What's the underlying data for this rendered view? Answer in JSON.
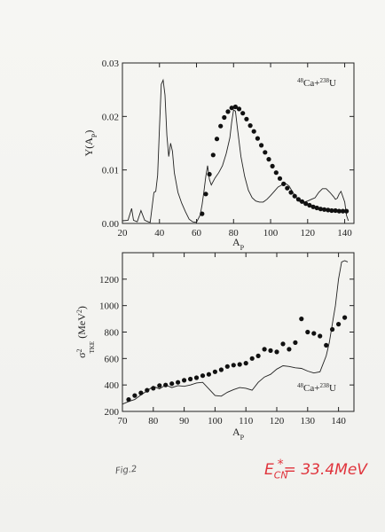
{
  "chart_data": [
    {
      "type": "line",
      "annotation": "48Ca+238U",
      "xlabel": "A_P",
      "ylabel": "Y(A_P)",
      "xlim": [
        20,
        145
      ],
      "ylim": [
        0,
        0.03
      ],
      "xticks": [
        20,
        40,
        60,
        80,
        100,
        120,
        140
      ],
      "yticks": [
        0.0,
        0.01,
        0.02,
        0.03
      ],
      "ytick_labels": [
        "0.00",
        "0.01",
        "0.02",
        "0.03"
      ],
      "series": [
        {
          "style": "line",
          "x": [
            20,
            23,
            25,
            26,
            28,
            30,
            32,
            34,
            35,
            37,
            38,
            39,
            40,
            41,
            42,
            43,
            44,
            45,
            46,
            47,
            48,
            50,
            52,
            54,
            56,
            58,
            60,
            62,
            63,
            64,
            65,
            66,
            67,
            68,
            70,
            72,
            74,
            76,
            78,
            79,
            80,
            81,
            82,
            84,
            86,
            88,
            90,
            92,
            94,
            96,
            98,
            100,
            102,
            104,
            106,
            108,
            110,
            112,
            114,
            116,
            118,
            120,
            122,
            124,
            126,
            128,
            130,
            132,
            134,
            135,
            136,
            137,
            138,
            140,
            141,
            142
          ],
          "y": [
            0.0005,
            0.0006,
            0.0028,
            0.0006,
            0.0003,
            0.0024,
            0.0006,
            0.0003,
            0.0002,
            0.0058,
            0.006,
            0.009,
            0.018,
            0.026,
            0.0268,
            0.024,
            0.0165,
            0.0125,
            0.015,
            0.0135,
            0.0095,
            0.0058,
            0.0038,
            0.0022,
            0.0008,
            0.0003,
            0.0002,
            0.0016,
            0.0035,
            0.006,
            0.0088,
            0.0108,
            0.0082,
            0.0072,
            0.0085,
            0.0095,
            0.0108,
            0.013,
            0.016,
            0.019,
            0.0212,
            0.021,
            0.018,
            0.0125,
            0.0088,
            0.0062,
            0.0048,
            0.0042,
            0.004,
            0.004,
            0.0045,
            0.0052,
            0.006,
            0.0068,
            0.0072,
            0.0075,
            0.007,
            0.0058,
            0.0048,
            0.004,
            0.004,
            0.0042,
            0.0045,
            0.0048,
            0.0058,
            0.0065,
            0.0065,
            0.0058,
            0.005,
            0.0045,
            0.0047,
            0.0055,
            0.006,
            0.004,
            0.0015,
            0.0005
          ]
        },
        {
          "style": "dots",
          "x": [
            63,
            65,
            67,
            69,
            71,
            73,
            75,
            77,
            79,
            81,
            83,
            85,
            87,
            89,
            91,
            93,
            95,
            97,
            99,
            101,
            103,
            105,
            107,
            109,
            111,
            113,
            115,
            117,
            119,
            121,
            123,
            125,
            127,
            129,
            131,
            133,
            135,
            137,
            139,
            141
          ],
          "y": [
            0.0018,
            0.0055,
            0.0092,
            0.0128,
            0.0158,
            0.0182,
            0.0198,
            0.0209,
            0.0216,
            0.0218,
            0.0214,
            0.0206,
            0.0195,
            0.0183,
            0.0172,
            0.0159,
            0.0146,
            0.0133,
            0.012,
            0.0107,
            0.0095,
            0.0084,
            0.0074,
            0.0066,
            0.0058,
            0.0051,
            0.0045,
            0.0041,
            0.0037,
            0.0034,
            0.0031,
            0.0029,
            0.0027,
            0.0026,
            0.0025,
            0.0024,
            0.0024,
            0.0023,
            0.0023,
            0.0023
          ]
        }
      ]
    },
    {
      "type": "line",
      "annotation": "48Ca+238U",
      "xlabel": "A_P",
      "ylabel": "σ²_TKE (MeV²)",
      "xlim": [
        70,
        145
      ],
      "ylim": [
        200,
        1400
      ],
      "xticks": [
        70,
        80,
        90,
        100,
        110,
        120,
        130,
        140
      ],
      "yticks": [
        200,
        400,
        600,
        800,
        1000,
        1200
      ],
      "series": [
        {
          "style": "line",
          "x": [
            70,
            72,
            74,
            76,
            78,
            80,
            82,
            84,
            86,
            88,
            90,
            92,
            94,
            96,
            98,
            100,
            102,
            104,
            106,
            108,
            110,
            112,
            114,
            116,
            118,
            120,
            122,
            124,
            126,
            128,
            130,
            132,
            134,
            136,
            137,
            138,
            139,
            140,
            141,
            142,
            143
          ],
          "y": [
            255,
            275,
            290,
            325,
            355,
            390,
            370,
            400,
            380,
            395,
            390,
            400,
            415,
            420,
            370,
            320,
            315,
            345,
            365,
            380,
            375,
            360,
            420,
            460,
            480,
            520,
            545,
            540,
            530,
            525,
            505,
            490,
            500,
            620,
            720,
            860,
            1000,
            1200,
            1330,
            1340,
            1330
          ]
        },
        {
          "style": "dots",
          "x": [
            72,
            74,
            76,
            78,
            80,
            82,
            84,
            86,
            88,
            90,
            92,
            94,
            96,
            98,
            100,
            102,
            104,
            106,
            108,
            110,
            112,
            114,
            116,
            118,
            120,
            122,
            124,
            126,
            128,
            130,
            132,
            134,
            136,
            138,
            140,
            142
          ],
          "y": [
            290,
            320,
            340,
            360,
            375,
            395,
            400,
            410,
            420,
            435,
            445,
            455,
            470,
            480,
            500,
            515,
            540,
            550,
            555,
            565,
            600,
            620,
            670,
            660,
            650,
            710,
            670,
            720,
            900,
            800,
            790,
            770,
            700,
            820,
            860,
            910
          ]
        }
      ]
    }
  ],
  "caption": "Fig.2",
  "energy_label": {
    "lhs": "E",
    "sub": "CN",
    "star": "*",
    "rhs": "= 33.4MeV"
  }
}
